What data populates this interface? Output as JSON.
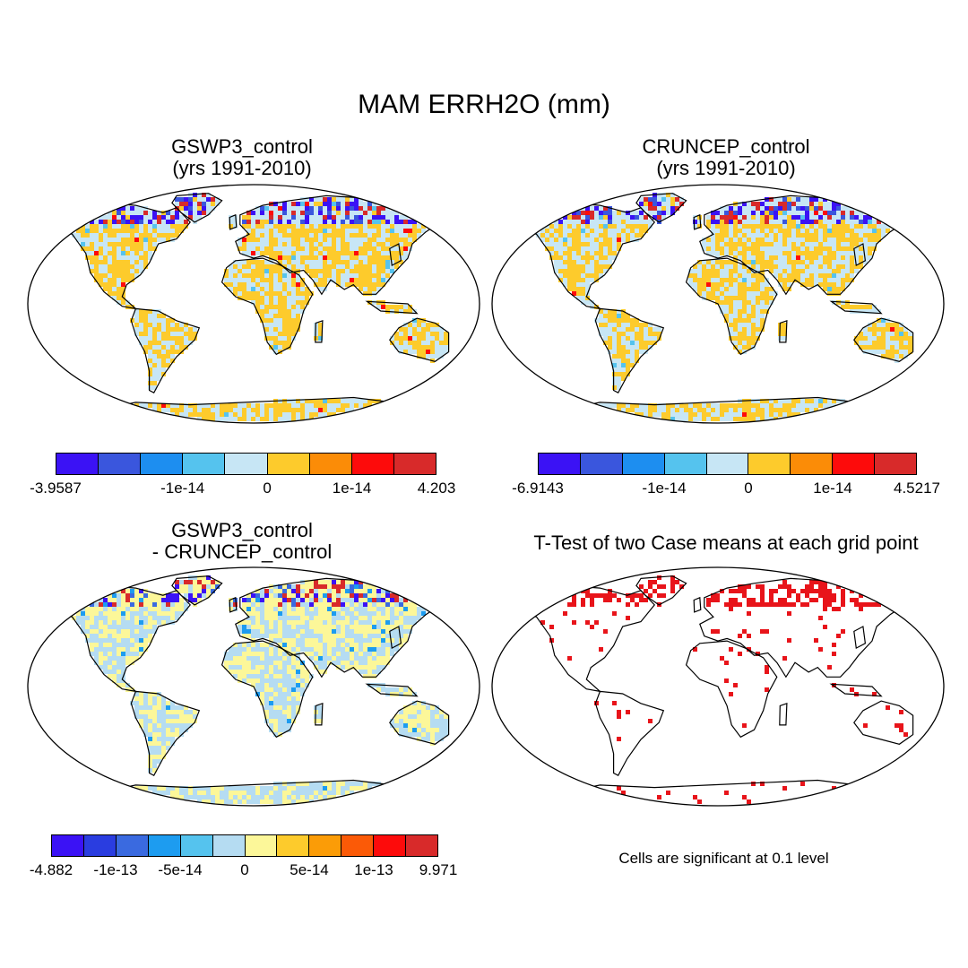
{
  "figure_title": "MAM ERRH2O (mm)",
  "panels": [
    {
      "id": "gswp3",
      "title_line1": "GSWP3_control",
      "title_line2": "(yrs 1991-2010)",
      "colorbar": {
        "colors": [
          "#3b12f5",
          "#3a56dd",
          "#1d8ef0",
          "#55c3ee",
          "#c7e6f5",
          "#fdcb2c",
          "#fb8c07",
          "#fd0b0b",
          "#d82a2a"
        ],
        "labels": [
          "-3.9587",
          "-1e-14",
          "0",
          "1e-14",
          "4.203"
        ]
      }
    },
    {
      "id": "cruncep",
      "title_line1": "CRUNCEP_control",
      "title_line2": "(yrs 1991-2010)",
      "colorbar": {
        "colors": [
          "#3b12f5",
          "#3a56dd",
          "#1d8ef0",
          "#55c3ee",
          "#c7e6f5",
          "#fdcb2c",
          "#fb8c07",
          "#fd0b0b",
          "#d82a2a"
        ],
        "labels": [
          "-6.9143",
          "-1e-14",
          "0",
          "1e-14",
          "4.5217"
        ]
      }
    },
    {
      "id": "diff",
      "title_line1": "GSWP3_control",
      "title_line2": "- CRUNCEP_control",
      "colorbar": {
        "colors": [
          "#3b12f5",
          "#2a3de0",
          "#3a6ae0",
          "#1d9cf0",
          "#55c3ee",
          "#b5dcf2",
          "#fcf799",
          "#fdcb2c",
          "#fb9c07",
          "#fb5a07",
          "#fd0b0b",
          "#d82a2a"
        ],
        "labels": [
          "-4.882",
          "-1e-13",
          "-5e-14",
          "0",
          "5e-14",
          "1e-13",
          "9.971"
        ]
      }
    },
    {
      "id": "ttest",
      "title_line1": "T-Test of two Case means at each grid point",
      "note": "Cells are significant at 0.1 level",
      "sig_color": "#e8141a"
    }
  ]
}
